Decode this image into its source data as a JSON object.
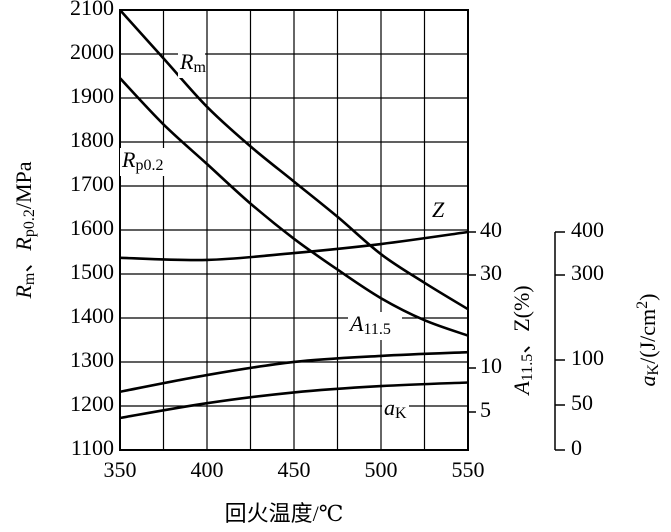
{
  "chart_data": {
    "type": "line",
    "xlabel": "回火温度/℃",
    "ylabel": [
      "R",
      "m",
      "、",
      "R",
      "p0.2",
      "/MPa"
    ],
    "y2label": [
      "A",
      "11.5",
      "、Z(%)"
    ],
    "y3label": [
      "a",
      "K",
      "/(J/cm",
      "2",
      ")"
    ],
    "xlim": [
      350,
      550
    ],
    "xticks": [
      350,
      400,
      450,
      500,
      550
    ],
    "xminor": [
      375,
      425,
      475,
      525
    ],
    "ylim": [
      1100,
      2100
    ],
    "yticks": [
      1100,
      1200,
      1300,
      1400,
      1500,
      1600,
      1700,
      1800,
      1900,
      2000,
      2100
    ],
    "y2lim": [
      5,
      40
    ],
    "y2ticks": [
      5,
      10,
      30,
      40
    ],
    "y3lim": [
      0,
      400
    ],
    "y3ticks": [
      0,
      50,
      100,
      300,
      400
    ],
    "grid": true,
    "series": [
      {
        "label": [
          "R",
          "m"
        ],
        "color": "#000",
        "axis": "y",
        "x": [
          350,
          375,
          400,
          425,
          450,
          475,
          500,
          525,
          550
        ],
        "values": [
          2100,
          1990,
          1880,
          1790,
          1710,
          1630,
          1545,
          1480,
          1420
        ]
      },
      {
        "label": [
          "R",
          "p0.2"
        ],
        "color": "#000",
        "axis": "y",
        "x": [
          350,
          375,
          400,
          425,
          450,
          475,
          500,
          525,
          550
        ],
        "values": [
          1945,
          1840,
          1750,
          1660,
          1580,
          1510,
          1445,
          1395,
          1360
        ]
      },
      {
        "label": [
          "Z"
        ],
        "color": "#000",
        "axis": "y2",
        "x": [
          350,
          400,
          450,
          500,
          550
        ],
        "values": [
          34,
          33.5,
          35.1,
          37.2,
          40
        ]
      },
      {
        "label": [
          "A",
          "11.5"
        ],
        "color": "#000",
        "axis": "y2",
        "x": [
          350,
          400,
          450,
          500,
          550
        ],
        "values": [
          7.3,
          9.2,
          11.3,
          12.6,
          13.4
        ]
      },
      {
        "label": [
          "a",
          "K"
        ],
        "color": "#000",
        "axis": "y3",
        "x": [
          350,
          400,
          450,
          500,
          550
        ],
        "values": [
          35.6,
          52,
          64,
          71,
          75
        ]
      }
    ]
  }
}
